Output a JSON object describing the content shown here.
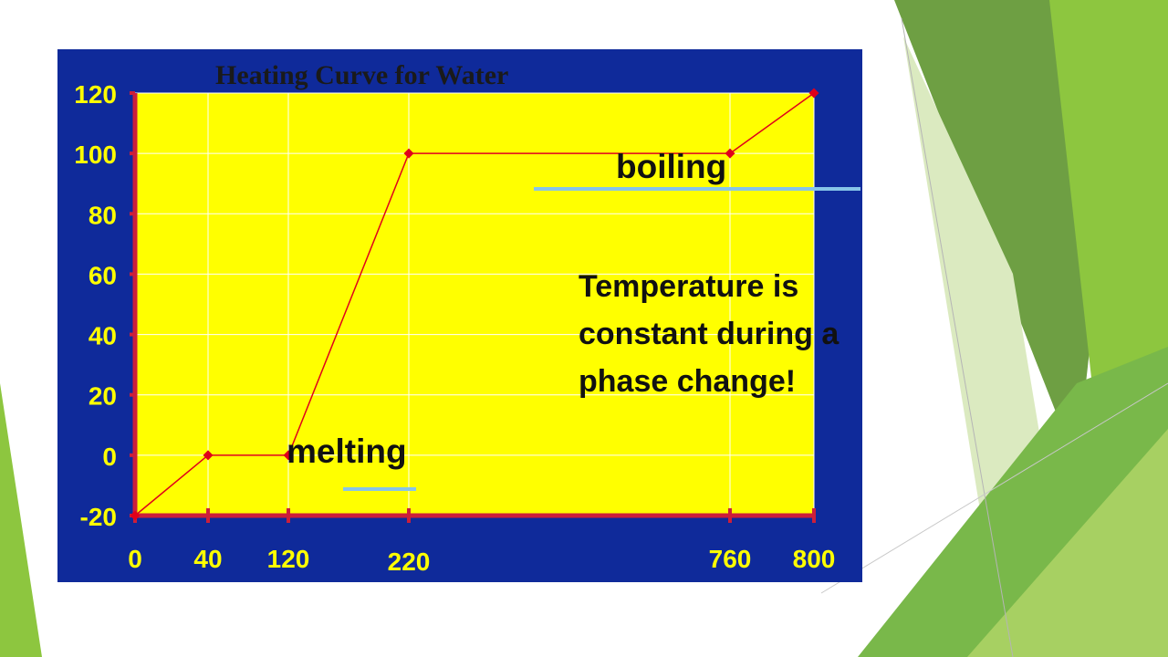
{
  "colors": {
    "panel": "#0f2a9a",
    "plot_area": "#ffff00",
    "axis": "#cc1f3a",
    "line": "#e0001b",
    "marker": "#e0001b",
    "tick_label": "#ffff00",
    "gridline": "#ffffff",
    "underline": "#87c4e8",
    "slide_accent_green": "#8dc63f"
  },
  "chart_data": {
    "type": "line",
    "title": "Heating Curve for Water",
    "xlabel": "",
    "ylabel": "",
    "x_categories": [
      "0",
      "40",
      "120",
      "220",
      "760",
      "800"
    ],
    "x": [
      0,
      40,
      120,
      220,
      760,
      800
    ],
    "series": [
      {
        "values": [
          -20,
          0,
          0,
          100,
          100,
          120
        ]
      }
    ],
    "y_ticks": [
      -20,
      0,
      20,
      40,
      60,
      80,
      100,
      120
    ],
    "ylim": [
      -20,
      120
    ],
    "grid": true,
    "legend": "none",
    "x_axis_note": "category-spaced x positions"
  },
  "annotations": {
    "boiling": "boiling",
    "melting": "melting",
    "note": "Temperature is constant during a phase change!"
  }
}
